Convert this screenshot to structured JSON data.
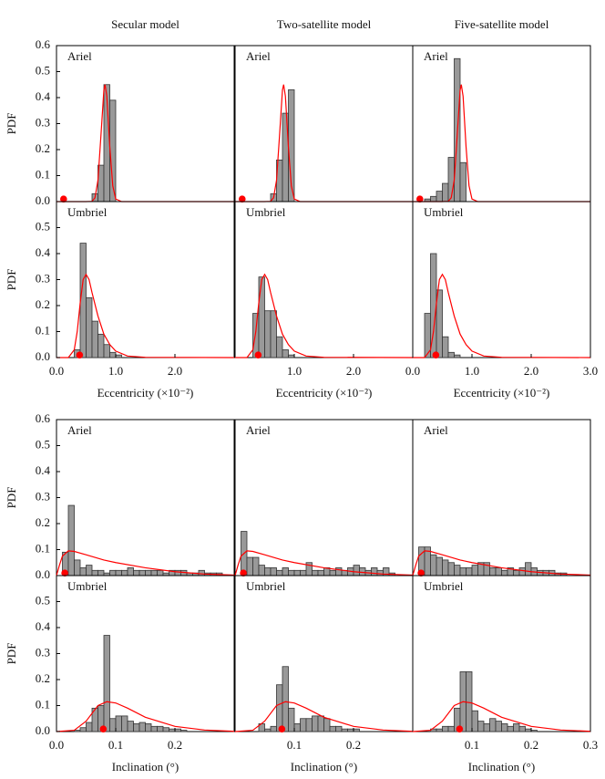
{
  "chart_data": [
    {
      "type": "histogram",
      "title": "Secular model",
      "label": "Ariel",
      "ylabel": "PDF",
      "xlim": [
        0,
        3
      ],
      "ylim": [
        0,
        0.6
      ],
      "yticks": [
        {
          "value": 0,
          "label": "0.0"
        },
        0.1,
        0.2,
        0.3,
        0.4,
        0.5,
        0.6
      ],
      "bar_color": "#999999",
      "curve_color": "#ff0000",
      "bins": [
        0.6,
        0.7,
        0.8,
        0.9,
        1.0
      ],
      "counts": [
        0.03,
        0.14,
        0.45,
        0.39
      ],
      "curve": {
        "x": [
          0,
          0.5,
          0.6,
          0.65,
          0.7,
          0.75,
          0.8,
          0.82,
          0.85,
          0.9,
          0.95,
          1.0,
          1.1,
          3.0
        ],
        "y": [
          0,
          0,
          0.001,
          0.015,
          0.082,
          0.252,
          0.429,
          0.45,
          0.405,
          0.211,
          0.061,
          0.01,
          0,
          0
        ]
      },
      "point": {
        "x": 0.12,
        "y": 0.01
      }
    },
    {
      "type": "histogram",
      "title": "Two-satellite model",
      "label": "Ariel",
      "xlim": [
        0,
        3
      ],
      "ylim": [
        0,
        0.6
      ],
      "bar_color": "#999999",
      "curve_color": "#ff0000",
      "bins": [
        0.6,
        0.7,
        0.8,
        0.9,
        1.0
      ],
      "counts": [
        0.03,
        0.16,
        0.34,
        0.43
      ],
      "curve": {
        "x": [
          0,
          0.5,
          0.6,
          0.65,
          0.7,
          0.75,
          0.8,
          0.82,
          0.85,
          0.9,
          0.95,
          1.0,
          1.1,
          3.0
        ],
        "y": [
          0,
          0,
          0.001,
          0.015,
          0.082,
          0.252,
          0.429,
          0.45,
          0.405,
          0.211,
          0.061,
          0.01,
          0,
          0
        ]
      },
      "point": {
        "x": 0.12,
        "y": 0.01
      }
    },
    {
      "type": "histogram",
      "title": "Five-satellite model",
      "label": "Ariel",
      "xlim": [
        0,
        3
      ],
      "ylim": [
        0,
        0.6
      ],
      "bar_color": "#999999",
      "curve_color": "#ff0000",
      "bins": [
        0.2,
        0.3,
        0.4,
        0.5,
        0.6,
        0.7,
        0.8,
        0.9
      ],
      "counts": [
        0.01,
        0.02,
        0.04,
        0.07,
        0.17,
        0.55,
        0.15
      ],
      "curve": {
        "x": [
          0,
          0.5,
          0.6,
          0.65,
          0.7,
          0.75,
          0.8,
          0.82,
          0.85,
          0.9,
          0.95,
          1.0,
          1.1,
          3.0
        ],
        "y": [
          0,
          0,
          0.001,
          0.015,
          0.082,
          0.252,
          0.429,
          0.45,
          0.405,
          0.211,
          0.061,
          0.01,
          0,
          0
        ]
      },
      "point": {
        "x": 0.12,
        "y": 0.01
      }
    },
    {
      "type": "histogram",
      "label": "Umbriel",
      "ylabel": "PDF",
      "xlabel": "Eccentricity (×10⁻²)",
      "xlim": [
        0,
        3
      ],
      "ylim": [
        0,
        0.6
      ],
      "yticks": [
        {
          "value": 0,
          "label": "0.0"
        },
        0.1,
        0.2,
        0.3,
        0.4,
        0.5
      ],
      "xticks": [
        {
          "value": 0,
          "label": "0.0"
        },
        {
          "value": 1,
          "label": "1.0"
        },
        {
          "value": 2,
          "label": "2.0"
        }
      ],
      "bar_color": "#999999",
      "curve_color": "#ff0000",
      "bins": [
        0.3,
        0.4,
        0.5,
        0.6,
        0.7,
        0.8,
        0.9,
        1.0,
        1.1
      ],
      "counts": [
        0.03,
        0.44,
        0.23,
        0.14,
        0.09,
        0.05,
        0.02,
        0.01
      ],
      "curve": {
        "x": [
          0,
          0.2,
          0.3,
          0.35,
          0.4,
          0.45,
          0.5,
          0.55,
          0.6,
          0.7,
          0.8,
          0.9,
          1.0,
          1.2,
          1.5,
          3.0
        ],
        "y": [
          0,
          0,
          0.03,
          0.1,
          0.21,
          0.3,
          0.32,
          0.3,
          0.25,
          0.16,
          0.09,
          0.05,
          0.025,
          0.006,
          0.001,
          0
        ]
      },
      "point": {
        "x": 0.39,
        "y": 0.01
      }
    },
    {
      "type": "histogram",
      "label": "Umbriel",
      "xlabel": "Eccentricity (×10⁻²)",
      "xlim": [
        0,
        3
      ],
      "ylim": [
        0,
        0.6
      ],
      "xticks": [
        {
          "value": 1,
          "label": "1.0"
        },
        {
          "value": 2,
          "label": "2.0"
        }
      ],
      "bar_color": "#999999",
      "curve_color": "#ff0000",
      "bins": [
        0.3,
        0.4,
        0.5,
        0.6,
        0.7,
        0.8,
        0.9,
        1.0
      ],
      "counts": [
        0.17,
        0.31,
        0.18,
        0.18,
        0.08,
        0.03,
        0.01
      ],
      "curve": {
        "x": [
          0,
          0.2,
          0.3,
          0.35,
          0.4,
          0.45,
          0.5,
          0.55,
          0.6,
          0.7,
          0.8,
          0.9,
          1.0,
          1.2,
          1.5,
          3.0
        ],
        "y": [
          0,
          0,
          0.03,
          0.1,
          0.21,
          0.3,
          0.32,
          0.3,
          0.25,
          0.16,
          0.09,
          0.05,
          0.025,
          0.006,
          0.001,
          0
        ]
      },
      "point": {
        "x": 0.39,
        "y": 0.01
      }
    },
    {
      "type": "histogram",
      "label": "Umbriel",
      "xlabel": "Eccentricity (×10⁻²)",
      "xlim": [
        0,
        3
      ],
      "ylim": [
        0,
        0.6
      ],
      "xticks": [
        {
          "value": 0,
          "label": "0.0"
        },
        {
          "value": 1,
          "label": "1.0"
        },
        {
          "value": 2,
          "label": "2.0"
        },
        {
          "value": 3,
          "label": "3.0"
        }
      ],
      "bar_color": "#999999",
      "curve_color": "#ff0000",
      "bins": [
        0.2,
        0.3,
        0.4,
        0.5,
        0.6,
        0.7,
        0.8
      ],
      "counts": [
        0.17,
        0.4,
        0.26,
        0.08,
        0.02,
        0.01
      ],
      "curve": {
        "x": [
          0,
          0.2,
          0.3,
          0.35,
          0.4,
          0.45,
          0.5,
          0.55,
          0.6,
          0.7,
          0.8,
          0.9,
          1.0,
          1.2,
          1.5,
          3.0
        ],
        "y": [
          0,
          0,
          0.03,
          0.1,
          0.21,
          0.3,
          0.32,
          0.3,
          0.25,
          0.16,
          0.09,
          0.05,
          0.025,
          0.006,
          0.001,
          0
        ]
      },
      "point": {
        "x": 0.39,
        "y": 0.01
      }
    },
    {
      "type": "histogram",
      "label": "Ariel",
      "ylabel": "PDF",
      "xlim": [
        0,
        0.3
      ],
      "ylim": [
        0,
        0.6
      ],
      "yticks": [
        {
          "value": 0,
          "label": "0.0"
        },
        0.1,
        0.2,
        0.3,
        0.4,
        0.5,
        0.6
      ],
      "bar_color": "#999999",
      "curve_color": "#ff0000",
      "bins": [
        0.01,
        0.02,
        0.03,
        0.04,
        0.05,
        0.06,
        0.07,
        0.08,
        0.09,
        0.1,
        0.11,
        0.12,
        0.13,
        0.14,
        0.15,
        0.16,
        0.17,
        0.18,
        0.19,
        0.2,
        0.21,
        0.22,
        0.23,
        0.24,
        0.25,
        0.26,
        0.27,
        0.28
      ],
      "counts": [
        0.09,
        0.27,
        0.06,
        0.03,
        0.04,
        0.02,
        0.02,
        0.01,
        0.02,
        0.02,
        0.02,
        0.03,
        0.02,
        0.02,
        0.02,
        0.02,
        0.02,
        0.01,
        0.02,
        0.02,
        0.02,
        0.01,
        0.01,
        0.02,
        0.01,
        0.01,
        0.01
      ],
      "curve": {
        "x": [
          0,
          0.005,
          0.01,
          0.02,
          0.03,
          0.05,
          0.08,
          0.1,
          0.15,
          0.2,
          0.25,
          0.3
        ],
        "y": [
          0,
          0.04,
          0.075,
          0.095,
          0.093,
          0.08,
          0.06,
          0.05,
          0.03,
          0.015,
          0.006,
          0.002
        ]
      },
      "point": {
        "x": 0.014,
        "y": 0.01
      }
    },
    {
      "type": "histogram",
      "label": "Ariel",
      "xlim": [
        0,
        0.3
      ],
      "ylim": [
        0,
        0.6
      ],
      "bar_color": "#999999",
      "curve_color": "#ff0000",
      "bins": [
        0.01,
        0.02,
        0.03,
        0.04,
        0.05,
        0.06,
        0.07,
        0.08,
        0.09,
        0.1,
        0.11,
        0.12,
        0.13,
        0.14,
        0.15,
        0.16,
        0.17,
        0.18,
        0.19,
        0.2,
        0.21,
        0.22,
        0.23,
        0.24,
        0.25,
        0.26,
        0.27
      ],
      "counts": [
        0.17,
        0.07,
        0.07,
        0.04,
        0.03,
        0.03,
        0.02,
        0.03,
        0.02,
        0.02,
        0.02,
        0.05,
        0.02,
        0.02,
        0.03,
        0.02,
        0.03,
        0.02,
        0.03,
        0.04,
        0.03,
        0.02,
        0.03,
        0.02,
        0.03,
        0.01
      ],
      "curve": {
        "x": [
          0,
          0.005,
          0.01,
          0.02,
          0.03,
          0.05,
          0.08,
          0.1,
          0.15,
          0.2,
          0.25,
          0.3
        ],
        "y": [
          0,
          0.04,
          0.075,
          0.095,
          0.093,
          0.08,
          0.06,
          0.05,
          0.03,
          0.015,
          0.006,
          0.002
        ]
      },
      "point": {
        "x": 0.014,
        "y": 0.01
      }
    },
    {
      "type": "histogram",
      "label": "Ariel",
      "xlim": [
        0,
        0.3
      ],
      "ylim": [
        0,
        0.6
      ],
      "bar_color": "#999999",
      "curve_color": "#ff0000",
      "bins": [
        0.01,
        0.02,
        0.03,
        0.04,
        0.05,
        0.06,
        0.07,
        0.08,
        0.09,
        0.1,
        0.11,
        0.12,
        0.13,
        0.14,
        0.15,
        0.16,
        0.17,
        0.18,
        0.19,
        0.2,
        0.21,
        0.22,
        0.23,
        0.24,
        0.25,
        0.26
      ],
      "counts": [
        0.11,
        0.11,
        0.08,
        0.07,
        0.06,
        0.05,
        0.04,
        0.03,
        0.03,
        0.04,
        0.05,
        0.05,
        0.03,
        0.03,
        0.02,
        0.03,
        0.02,
        0.03,
        0.05,
        0.03,
        0.02,
        0.02,
        0.02,
        0.01,
        0.01
      ],
      "curve": {
        "x": [
          0,
          0.005,
          0.01,
          0.02,
          0.03,
          0.05,
          0.08,
          0.1,
          0.15,
          0.2,
          0.25,
          0.3
        ],
        "y": [
          0,
          0.04,
          0.075,
          0.095,
          0.093,
          0.08,
          0.06,
          0.05,
          0.03,
          0.015,
          0.006,
          0.002
        ]
      },
      "point": {
        "x": 0.014,
        "y": 0.01
      }
    },
    {
      "type": "histogram",
      "label": "Umbriel",
      "ylabel": "PDF",
      "xlabel": "Inclination (°)",
      "xlim": [
        0,
        0.3
      ],
      "ylim": [
        0,
        0.6
      ],
      "yticks": [
        {
          "value": 0,
          "label": "0.0"
        },
        0.1,
        0.2,
        0.3,
        0.4,
        0.5
      ],
      "xticks": [
        {
          "value": 0,
          "label": "0.0"
        },
        0.1,
        0.2
      ],
      "bar_color": "#999999",
      "curve_color": "#ff0000",
      "bins": [
        0.03,
        0.04,
        0.05,
        0.06,
        0.07,
        0.08,
        0.09,
        0.1,
        0.11,
        0.12,
        0.13,
        0.14,
        0.15,
        0.16,
        0.17,
        0.18,
        0.19,
        0.2,
        0.21,
        0.22
      ],
      "counts": [
        0.005,
        0.015,
        0.035,
        0.09,
        0.1,
        0.37,
        0.05,
        0.06,
        0.06,
        0.04,
        0.03,
        0.035,
        0.03,
        0.02,
        0.02,
        0.015,
        0.01,
        0.01,
        0.005
      ],
      "curve": {
        "x": [
          0,
          0.03,
          0.05,
          0.07,
          0.085,
          0.1,
          0.12,
          0.15,
          0.2,
          0.25,
          0.3
        ],
        "y": [
          0,
          0.005,
          0.04,
          0.1,
          0.115,
          0.11,
          0.09,
          0.055,
          0.02,
          0.006,
          0.001
        ]
      },
      "point": {
        "x": 0.079,
        "y": 0.01
      }
    },
    {
      "type": "histogram",
      "label": "Umbriel",
      "xlabel": "Inclination (°)",
      "xlim": [
        0,
        0.3
      ],
      "ylim": [
        0,
        0.6
      ],
      "xticks": [
        0.1,
        0.2
      ],
      "bar_color": "#999999",
      "curve_color": "#ff0000",
      "bins": [
        0.04,
        0.05,
        0.06,
        0.07,
        0.08,
        0.09,
        0.1,
        0.11,
        0.12,
        0.13,
        0.14,
        0.15,
        0.16,
        0.17,
        0.18,
        0.19,
        0.2,
        0.21
      ],
      "counts": [
        0.03,
        0.01,
        0.02,
        0.18,
        0.25,
        0.09,
        0.03,
        0.05,
        0.05,
        0.06,
        0.06,
        0.05,
        0.02,
        0.02,
        0.01,
        0.01,
        0.01
      ],
      "curve": {
        "x": [
          0,
          0.03,
          0.05,
          0.07,
          0.085,
          0.1,
          0.12,
          0.15,
          0.2,
          0.25,
          0.3
        ],
        "y": [
          0,
          0.005,
          0.04,
          0.1,
          0.115,
          0.11,
          0.09,
          0.055,
          0.02,
          0.006,
          0.001
        ]
      },
      "point": {
        "x": 0.079,
        "y": 0.01
      }
    },
    {
      "type": "histogram",
      "label": "Umbriel",
      "xlabel": "Inclination (°)",
      "xlim": [
        0,
        0.3
      ],
      "ylim": [
        0,
        0.6
      ],
      "xticks": [
        0.1,
        0.2,
        0.3
      ],
      "bar_color": "#999999",
      "curve_color": "#ff0000",
      "bins": [
        0.03,
        0.04,
        0.05,
        0.06,
        0.07,
        0.08,
        0.09,
        0.1,
        0.11,
        0.12,
        0.13,
        0.14,
        0.15,
        0.16,
        0.17,
        0.18,
        0.19,
        0.2,
        0.21
      ],
      "counts": [
        0.01,
        0.01,
        0.02,
        0.02,
        0.09,
        0.23,
        0.23,
        0.08,
        0.04,
        0.03,
        0.05,
        0.04,
        0.03,
        0.02,
        0.03,
        0.02,
        0.01,
        0.005
      ],
      "curve": {
        "x": [
          0,
          0.03,
          0.05,
          0.07,
          0.085,
          0.1,
          0.12,
          0.15,
          0.2,
          0.25,
          0.3
        ],
        "y": [
          0,
          0.005,
          0.04,
          0.1,
          0.115,
          0.11,
          0.09,
          0.055,
          0.02,
          0.006,
          0.001
        ]
      },
      "point": {
        "x": 0.079,
        "y": 0.01
      }
    }
  ]
}
